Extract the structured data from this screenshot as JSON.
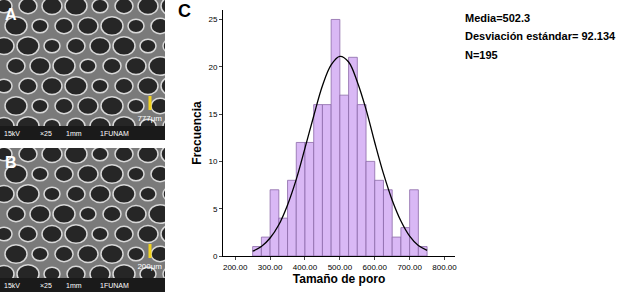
{
  "panels": [
    {
      "label": "A",
      "measure": "777μm",
      "footer": [
        "15kV",
        "×25",
        "1mm",
        "1FUNAM"
      ]
    },
    {
      "label": "B",
      "measure": "200μm",
      "footer": [
        "15kV",
        "×25",
        "1mm",
        "1FUNAM"
      ]
    }
  ],
  "chart_data": {
    "type": "histogram",
    "title": "C",
    "x_label": "Tamaño de poro",
    "y_label": "Frecuencia",
    "bins": [
      250,
      275,
      300,
      325,
      350,
      375,
      400,
      425,
      450,
      475,
      500,
      525,
      550,
      575,
      600,
      625,
      650,
      675,
      700,
      725,
      750
    ],
    "values": [
      1,
      2,
      7,
      4,
      8,
      12,
      12,
      16,
      16,
      25,
      17,
      21,
      16,
      10,
      8,
      7,
      2,
      3,
      7,
      1
    ],
    "color": "#d9b8f5",
    "curve": {
      "x": [
        250,
        275,
        300,
        325,
        350,
        375,
        400,
        425,
        450,
        475,
        500,
        525,
        550,
        575,
        600,
        625,
        650,
        675,
        700,
        725,
        750
      ],
      "values": [
        0.5,
        1.0,
        1.9,
        3.3,
        5.4,
        8.1,
        11.4,
        14.8,
        18.0,
        20.2,
        21.1,
        20.5,
        18.4,
        15.5,
        12.0,
        8.7,
        5.9,
        3.7,
        2.1,
        1.1,
        0.6
      ],
      "color": "#000000"
    },
    "xlim": [
      165,
      830
    ],
    "xticks": [
      {
        "value": 200,
        "label": "200.00"
      },
      {
        "value": 300,
        "label": "300.00"
      },
      {
        "value": 400,
        "label": "400.00"
      },
      {
        "value": 500,
        "label": "500.00"
      },
      {
        "value": 600,
        "label": "600.00"
      },
      {
        "value": 700,
        "label": "700.00"
      },
      {
        "value": 800,
        "label": "800.00"
      }
    ],
    "ylim": [
      0,
      26
    ],
    "yticks": [
      0,
      5,
      10,
      15,
      20,
      25
    ],
    "grid": false,
    "annotations": [
      "Media=502.3",
      "Desviación estándar= 92.134",
      "N=195"
    ]
  }
}
